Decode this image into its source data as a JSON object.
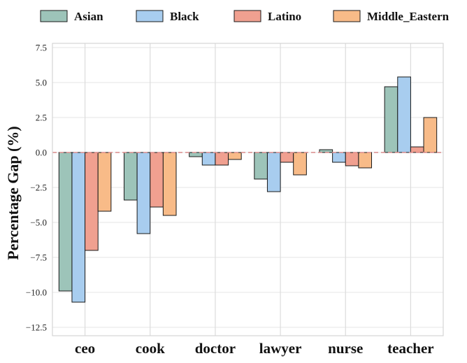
{
  "chart_data": {
    "type": "bar",
    "title": "",
    "xlabel": "",
    "ylabel": "Percentage Gap (%)",
    "categories": [
      "ceo",
      "cook",
      "doctor",
      "lawyer",
      "nurse",
      "teacher"
    ],
    "series": [
      {
        "name": "Asian",
        "color": "#9dc4b9",
        "values": [
          -9.9,
          -3.4,
          -0.3,
          -1.9,
          0.2,
          4.7
        ]
      },
      {
        "name": "Black",
        "color": "#a8cdef",
        "values": [
          -10.7,
          -5.8,
          -0.9,
          -2.8,
          -0.7,
          5.4
        ]
      },
      {
        "name": "Latino",
        "color": "#f0a090",
        "values": [
          -7.0,
          -3.9,
          -0.9,
          -0.7,
          -0.95,
          0.4
        ]
      },
      {
        "name": "Middle_Eastern",
        "color": "#f8bb88",
        "values": [
          -4.2,
          -4.5,
          -0.5,
          -1.6,
          -1.1,
          2.5
        ]
      }
    ],
    "ylim": [
      -13.1,
      7.8
    ],
    "yticks": [
      7.5,
      5.0,
      2.5,
      0.0,
      -2.5,
      -5.0,
      -7.5,
      -10.0,
      -12.5
    ],
    "ytick_labels": [
      "7.5",
      "5.0",
      "2.5",
      "0.0",
      "−2.5",
      "−5.0",
      "−7.5",
      "−10.0",
      "−12.5"
    ],
    "reference_line": {
      "value": 0,
      "color": "#d98a8a",
      "style": "dashed"
    },
    "grid": true,
    "legend_position": "top"
  }
}
